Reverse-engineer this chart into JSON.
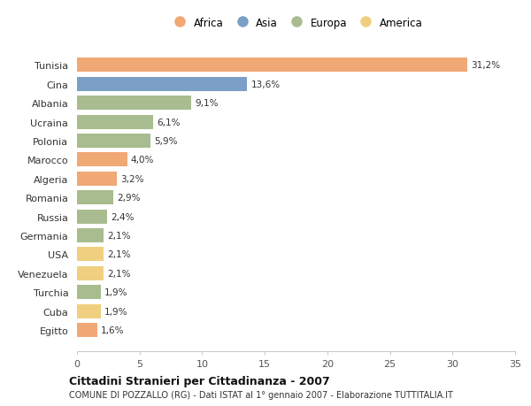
{
  "countries": [
    "Tunisia",
    "Cina",
    "Albania",
    "Ucraina",
    "Polonia",
    "Marocco",
    "Algeria",
    "Romania",
    "Russia",
    "Germania",
    "USA",
    "Venezuela",
    "Turchia",
    "Cuba",
    "Egitto"
  ],
  "values": [
    31.2,
    13.6,
    9.1,
    6.1,
    5.9,
    4.0,
    3.2,
    2.9,
    2.4,
    2.1,
    2.1,
    2.1,
    1.9,
    1.9,
    1.6
  ],
  "labels": [
    "31,2%",
    "13,6%",
    "9,1%",
    "6,1%",
    "5,9%",
    "4,0%",
    "3,2%",
    "2,9%",
    "2,4%",
    "2,1%",
    "2,1%",
    "2,1%",
    "1,9%",
    "1,9%",
    "1,6%"
  ],
  "categories": [
    "Africa",
    "Asia",
    "Europa",
    "America"
  ],
  "continent": [
    "Africa",
    "Asia",
    "Europa",
    "Europa",
    "Europa",
    "Africa",
    "Africa",
    "Europa",
    "Europa",
    "Europa",
    "America",
    "America",
    "Europa",
    "America",
    "Africa"
  ],
  "colors": {
    "Africa": "#F0A875",
    "Asia": "#7B9FC7",
    "Europa": "#A8BC8F",
    "America": "#F0D080"
  },
  "legend_colors": [
    "#F0A875",
    "#7B9FC7",
    "#A8BC8F",
    "#F0D080"
  ],
  "bg_color": "#FFFFFF",
  "xlim": [
    0,
    35
  ],
  "xticks": [
    0,
    5,
    10,
    15,
    20,
    25,
    30,
    35
  ],
  "title": "Cittadini Stranieri per Cittadinanza - 2007",
  "subtitle": "COMUNE DI POZZALLO (RG) - Dati ISTAT al 1° gennaio 2007 - Elaborazione TUTTITALIA.IT"
}
